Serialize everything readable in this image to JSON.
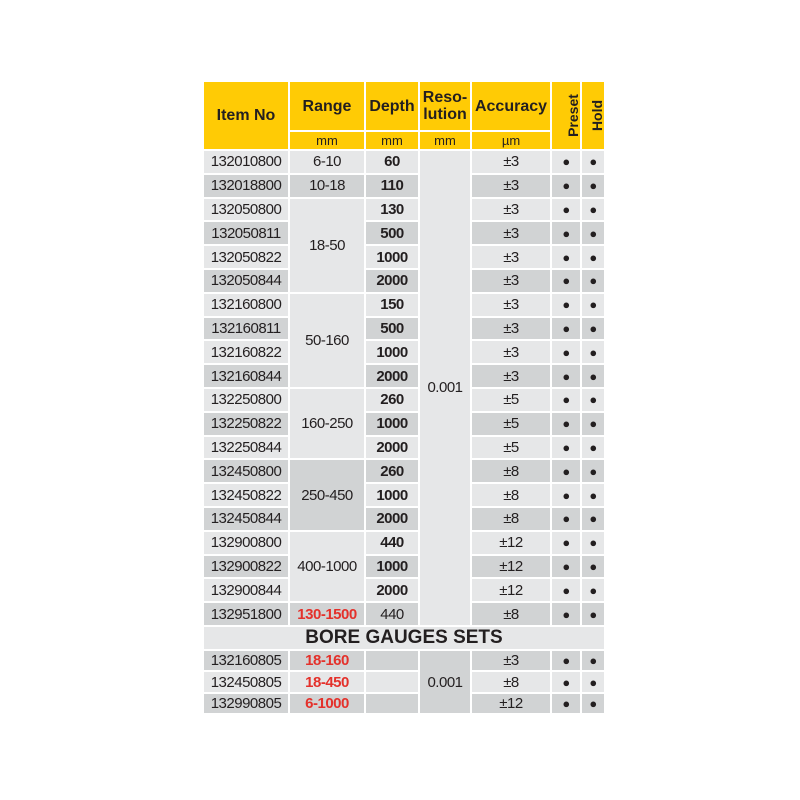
{
  "header": {
    "item_no": "Item No",
    "range": "Range",
    "depth": "Depth",
    "resolution": "Reso-\nlution",
    "accuracy": "Accuracy",
    "preset": "Preset",
    "hold": "Hold",
    "range_unit": "mm",
    "depth_unit": "mm",
    "resolution_unit": "mm",
    "accuracy_unit": "µm"
  },
  "resolution_value": "0.001",
  "dot": "●",
  "colors": {
    "header": "#ffcb05",
    "row_light": "#e6e7e8",
    "row_dark": "#d1d3d4",
    "highlight": "#e4312b"
  },
  "groups": [
    {
      "range": "6-10",
      "shade": "light",
      "rows": [
        {
          "item": "132010800",
          "depth": "60",
          "accuracy": "±3"
        }
      ]
    },
    {
      "range": "10-18",
      "shade": "dark",
      "rows": [
        {
          "item": "132018800",
          "depth": "110",
          "accuracy": "±3"
        }
      ]
    },
    {
      "range": "18-50",
      "shade": "light",
      "rows": [
        {
          "item": "132050800",
          "depth": "130",
          "accuracy": "±3"
        },
        {
          "item": "132050811",
          "depth": "500",
          "accuracy": "±3"
        },
        {
          "item": "132050822",
          "depth": "1000",
          "accuracy": "±3"
        },
        {
          "item": "132050844",
          "depth": "2000",
          "accuracy": "±3"
        }
      ]
    },
    {
      "range": "50-160",
      "shade": "light",
      "rows": [
        {
          "item": "132160800",
          "depth": "150",
          "accuracy": "±3"
        },
        {
          "item": "132160811",
          "depth": "500",
          "accuracy": "±3"
        },
        {
          "item": "132160822",
          "depth": "1000",
          "accuracy": "±3"
        },
        {
          "item": "132160844",
          "depth": "2000",
          "accuracy": "±3"
        }
      ]
    },
    {
      "range": "160-250",
      "shade": "light",
      "rows": [
        {
          "item": "132250800",
          "depth": "260",
          "accuracy": "±5"
        },
        {
          "item": "132250822",
          "depth": "1000",
          "accuracy": "±5"
        },
        {
          "item": "132250844",
          "depth": "2000",
          "accuracy": "±5"
        }
      ]
    },
    {
      "range": "250-450",
      "shade": "dark",
      "rows": [
        {
          "item": "132450800",
          "depth": "260",
          "accuracy": "±8"
        },
        {
          "item": "132450822",
          "depth": "1000",
          "accuracy": "±8"
        },
        {
          "item": "132450844",
          "depth": "2000",
          "accuracy": "±8"
        }
      ]
    },
    {
      "range": "400-1000",
      "shade": "light",
      "rows": [
        {
          "item": "132900800",
          "depth": "440",
          "accuracy": "±12"
        },
        {
          "item": "132900822",
          "depth": "1000",
          "accuracy": "±12"
        },
        {
          "item": "132900844",
          "depth": "2000",
          "accuracy": "±12"
        }
      ]
    },
    {
      "range": "130-1500",
      "shade": "dark",
      "red": true,
      "rows": [
        {
          "item": "132951800",
          "depth": "440",
          "accuracy": "±8",
          "plain": true
        }
      ]
    }
  ],
  "sets_title": "BORE GAUGES SETS",
  "sets": [
    {
      "item": "132160805",
      "range": "18-160",
      "accuracy": "±3"
    },
    {
      "item": "132450805",
      "range": "18-450",
      "accuracy": "±8"
    },
    {
      "item": "132990805",
      "range": "6-1000",
      "accuracy": "±12"
    }
  ]
}
